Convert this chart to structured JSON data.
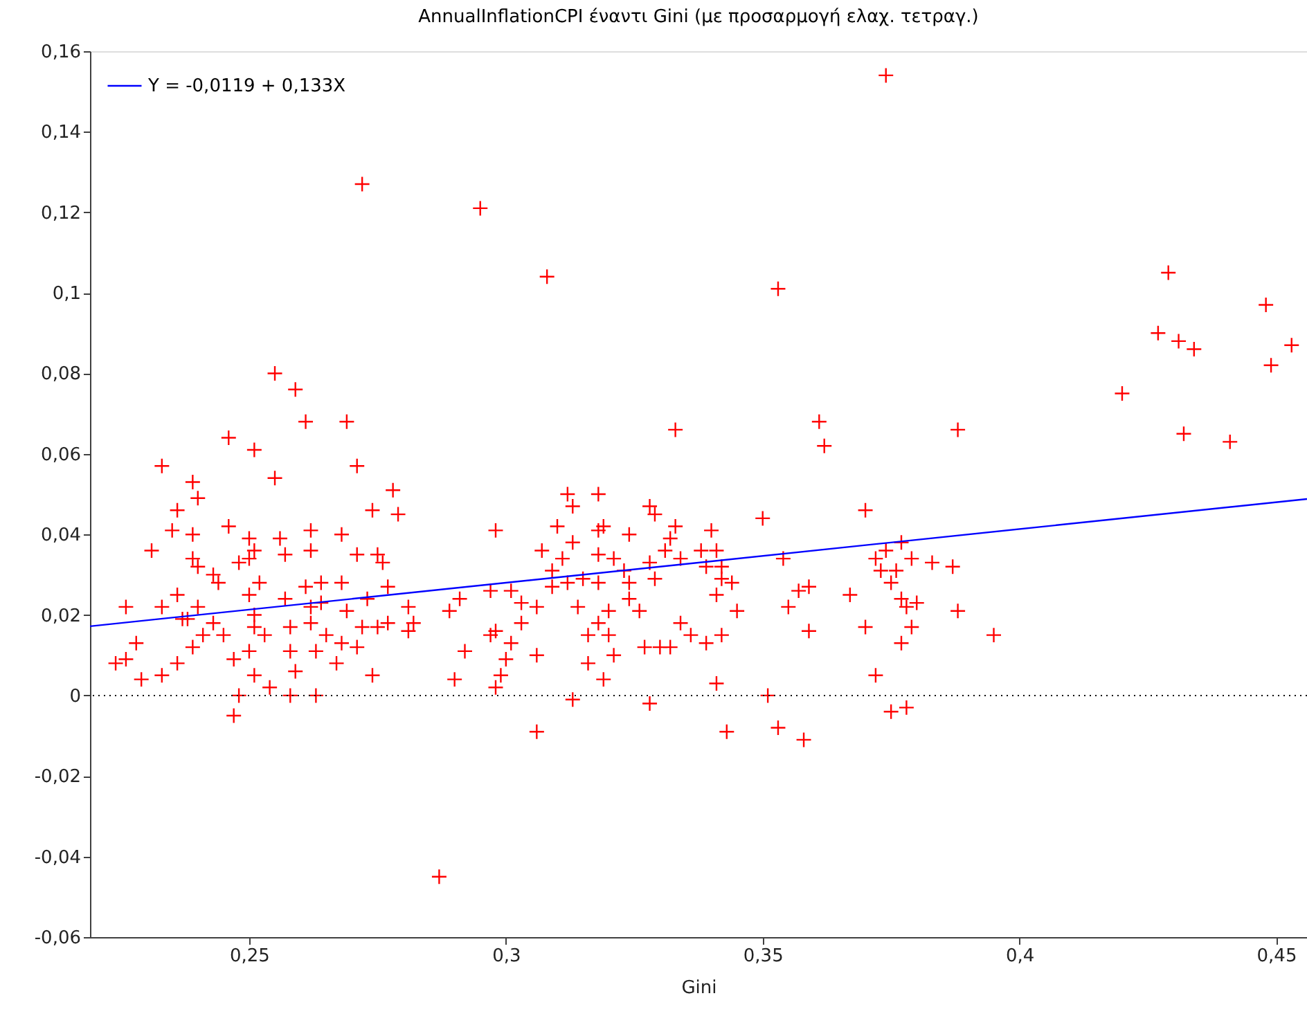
{
  "chart_data": {
    "type": "scatter",
    "title": "AnnualInflationCPI έναντι Gini (με προσαρμογή ελαχ. τετραγ.)",
    "xlabel": "Gini",
    "xlim": [
      0.219,
      0.456
    ],
    "ylim": [
      -0.06,
      0.16
    ],
    "xticks": [
      {
        "value": 0.25,
        "label": "0,25"
      },
      {
        "value": 0.3,
        "label": "0,3"
      },
      {
        "value": 0.35,
        "label": "0,35"
      },
      {
        "value": 0.4,
        "label": "0,4"
      },
      {
        "value": 0.45,
        "label": "0,45"
      }
    ],
    "yticks": [
      {
        "value": -0.06,
        "label": "-0,06"
      },
      {
        "value": -0.04,
        "label": "-0,04"
      },
      {
        "value": -0.02,
        "label": "-0,02"
      },
      0,
      {
        "value": 0.02,
        "label": "0,02"
      },
      {
        "value": 0.04,
        "label": "0,04"
      },
      {
        "value": 0.06,
        "label": "0,06"
      },
      {
        "value": 0.08,
        "label": "0,08"
      },
      {
        "value": 0.1,
        "label": "0,1"
      },
      {
        "value": 0.12,
        "label": "0,12"
      },
      {
        "value": 0.14,
        "label": "0,14"
      },
      {
        "value": 0.16,
        "label": "0,16"
      }
    ],
    "grid": false,
    "legend": "top left",
    "ref_lines": [
      {
        "axis": "y",
        "value": 0,
        "color": "#000000",
        "line_style": "dotted"
      }
    ],
    "series": [
      {
        "color": "#ff0000",
        "marker": "cross",
        "x": [
          0.374,
          0.272,
          0.295,
          0.308,
          0.353,
          0.429,
          0.448,
          0.427,
          0.431,
          0.434,
          0.449,
          0.453,
          0.42,
          0.432,
          0.441,
          0.388,
          0.361,
          0.362,
          0.333,
          0.255,
          0.259,
          0.246,
          0.251,
          0.261,
          0.269,
          0.255,
          0.271,
          0.233,
          0.278,
          0.274,
          0.279,
          0.236,
          0.239,
          0.24,
          0.226,
          0.228,
          0.224,
          0.226,
          0.229,
          0.233,
          0.236,
          0.233,
          0.236,
          0.237,
          0.238,
          0.24,
          0.239,
          0.241,
          0.235,
          0.231,
          0.239,
          0.239,
          0.24,
          0.243,
          0.244,
          0.243,
          0.245,
          0.247,
          0.248,
          0.247,
          0.246,
          0.25,
          0.25,
          0.248,
          0.251,
          0.25,
          0.252,
          0.251,
          0.251,
          0.253,
          0.25,
          0.251,
          0.254,
          0.256,
          0.257,
          0.257,
          0.258,
          0.258,
          0.259,
          0.258,
          0.262,
          0.262,
          0.262,
          0.261,
          0.262,
          0.263,
          0.263,
          0.264,
          0.264,
          0.265,
          0.267,
          0.268,
          0.268,
          0.269,
          0.268,
          0.271,
          0.274,
          0.273,
          0.272,
          0.271,
          0.275,
          0.276,
          0.275,
          0.277,
          0.277,
          0.281,
          0.281,
          0.282,
          0.287,
          0.289,
          0.291,
          0.292,
          0.29,
          0.298,
          0.297,
          0.298,
          0.298,
          0.297,
          0.299,
          0.3,
          0.301,
          0.301,
          0.303,
          0.303,
          0.306,
          0.306,
          0.306,
          0.307,
          0.31,
          0.311,
          0.309,
          0.309,
          0.312,
          0.313,
          0.313,
          0.312,
          0.314,
          0.313,
          0.315,
          0.316,
          0.316,
          0.318,
          0.318,
          0.318,
          0.318,
          0.319,
          0.319,
          0.318,
          0.32,
          0.32,
          0.321,
          0.321,
          0.323,
          0.324,
          0.324,
          0.324,
          0.326,
          0.327,
          0.328,
          0.329,
          0.328,
          0.329,
          0.328,
          0.33,
          0.331,
          0.332,
          0.333,
          0.332,
          0.334,
          0.334,
          0.336,
          0.338,
          0.339,
          0.34,
          0.341,
          0.339,
          0.342,
          0.342,
          0.341,
          0.344,
          0.342,
          0.341,
          0.343,
          0.345,
          0.35,
          0.351,
          0.353,
          0.354,
          0.355,
          0.357,
          0.359,
          0.359,
          0.358,
          0.367,
          0.37,
          0.37,
          0.372,
          0.372,
          0.374,
          0.373,
          0.375,
          0.376,
          0.377,
          0.377,
          0.378,
          0.377,
          0.375,
          0.378,
          0.379,
          0.383,
          0.387,
          0.388,
          0.395,
          0.38,
          0.379
        ],
        "values": [
          0.154,
          0.127,
          0.121,
          0.104,
          0.101,
          0.105,
          0.097,
          0.09,
          0.088,
          0.086,
          0.082,
          0.087,
          0.075,
          0.065,
          0.063,
          0.066,
          0.068,
          0.062,
          0.066,
          0.08,
          0.076,
          0.064,
          0.061,
          0.068,
          0.068,
          0.054,
          0.057,
          0.057,
          0.051,
          0.046,
          0.045,
          0.046,
          0.053,
          0.049,
          0.022,
          0.013,
          0.008,
          0.009,
          0.004,
          0.005,
          0.008,
          0.022,
          0.025,
          0.019,
          0.019,
          0.022,
          0.012,
          0.015,
          0.041,
          0.036,
          0.04,
          0.034,
          0.032,
          0.03,
          0.028,
          0.018,
          0.015,
          0.009,
          0.0,
          -0.005,
          0.042,
          0.039,
          0.034,
          0.033,
          0.036,
          0.025,
          0.028,
          0.02,
          0.017,
          0.015,
          0.011,
          0.005,
          0.002,
          0.039,
          0.035,
          0.024,
          0.017,
          0.011,
          0.006,
          0.0,
          0.041,
          0.036,
          0.022,
          0.027,
          0.018,
          0.011,
          0.0,
          0.028,
          0.023,
          0.015,
          0.008,
          0.04,
          0.028,
          0.021,
          0.013,
          0.035,
          0.005,
          0.024,
          0.017,
          0.012,
          0.035,
          0.033,
          0.017,
          0.018,
          0.027,
          0.022,
          0.016,
          0.018,
          -0.045,
          0.021,
          0.024,
          0.011,
          0.004,
          0.041,
          0.026,
          0.016,
          0.002,
          0.015,
          0.005,
          0.009,
          0.026,
          0.013,
          0.023,
          0.018,
          0.01,
          -0.009,
          0.022,
          0.036,
          0.042,
          0.034,
          0.031,
          0.027,
          0.05,
          0.047,
          0.038,
          0.028,
          0.022,
          -0.001,
          0.029,
          0.015,
          0.008,
          0.05,
          0.041,
          0.035,
          0.028,
          0.042,
          0.004,
          0.018,
          0.015,
          0.021,
          0.01,
          0.034,
          0.031,
          0.04,
          0.028,
          0.024,
          0.021,
          0.012,
          0.047,
          0.045,
          0.033,
          0.029,
          -0.002,
          0.012,
          0.036,
          0.012,
          0.042,
          0.039,
          0.034,
          0.018,
          0.015,
          0.036,
          0.013,
          0.041,
          0.036,
          0.032,
          0.032,
          0.029,
          0.025,
          0.028,
          0.015,
          0.003,
          -0.009,
          0.021,
          0.044,
          0.0,
          -0.008,
          0.034,
          0.022,
          0.026,
          0.027,
          0.016,
          -0.011,
          0.025,
          0.046,
          0.017,
          0.005,
          0.034,
          0.036,
          0.031,
          0.028,
          0.031,
          0.038,
          0.024,
          0.022,
          0.013,
          -0.004,
          -0.003,
          0.034,
          0.033,
          0.032,
          0.021,
          0.015,
          0.023,
          0.017
        ]
      },
      {
        "type": "line",
        "name": "Y = -0,0119 + 0,133X",
        "color": "#0000ff",
        "line_style": "solid",
        "x": [
          0.219,
          0.456
        ],
        "values": [
          0.0172,
          0.0488
        ]
      }
    ]
  }
}
